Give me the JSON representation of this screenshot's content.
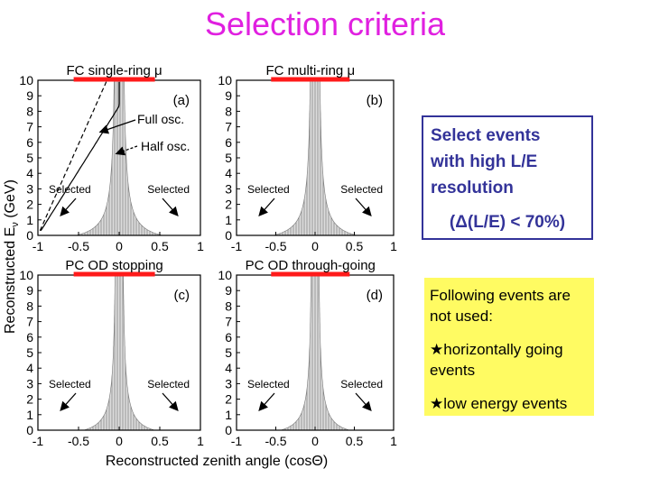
{
  "slide_title": "Selection criteria",
  "figure": {
    "y_axis_label_main": "Reconstructed E",
    "y_axis_label_sub": "ν",
    "y_axis_label_unit": "(GeV)",
    "x_axis_label": "Reconstructed zenith angle (cosΘ)",
    "y_ticks": [
      "0",
      "1",
      "2",
      "3",
      "4",
      "5",
      "6",
      "7",
      "8",
      "9",
      "10"
    ],
    "x_ticks": [
      "-1",
      "-0.5",
      "0",
      "0.5",
      "1"
    ],
    "selected_label": "Selected",
    "panels": [
      {
        "title": "FC single-ring μ",
        "tag": "(a)"
      },
      {
        "title": "FC multi-ring μ",
        "tag": "(b)"
      },
      {
        "title": "PC OD stopping",
        "tag": "(c)"
      },
      {
        "title": "PC OD through-going",
        "tag": "(d)"
      }
    ],
    "curve_labels": {
      "full": "Full osc.",
      "half": "Half osc."
    }
  },
  "boxes": {
    "resolution": {
      "line1": "Select events",
      "line2": "with high L/E",
      "line3": "resolution",
      "criterion": "(Δ(L/E) < 70%)"
    },
    "not_used": {
      "intro": "Following events are not used:",
      "item1": "★horizontally going events",
      "item2": "★low energy events"
    }
  },
  "colors": {
    "title": "#e020e0",
    "box_border": "#333399",
    "box_text": "#333399",
    "note_bg": "#fffb62",
    "panel_title_bar": "#ff1a1a"
  }
}
